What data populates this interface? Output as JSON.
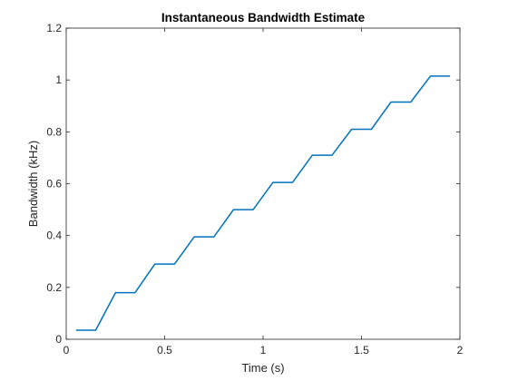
{
  "chart_data": {
    "type": "line",
    "title": "Instantaneous Bandwidth Estimate",
    "xlabel": "Time (s)",
    "ylabel": "Bandwidth (kHz)",
    "xlim": [
      0,
      2
    ],
    "ylim": [
      0,
      1.2
    ],
    "grid": false,
    "x_ticks": [
      0,
      0.5,
      1,
      1.5,
      2
    ],
    "x_tick_labels": [
      "0",
      "0.5",
      "1",
      "1.5",
      "2"
    ],
    "y_ticks": [
      0,
      0.2,
      0.4,
      0.6,
      0.8,
      1,
      1.2
    ],
    "y_tick_labels": [
      "0",
      "0.2",
      "0.4",
      "0.6",
      "0.8",
      "1",
      "1.2"
    ],
    "line_color": "#0072BD",
    "series": [
      {
        "x": [
          0.05,
          0.15,
          0.25,
          0.35,
          0.45,
          0.55,
          0.65,
          0.75,
          0.85,
          0.95,
          1.05,
          1.15,
          1.25,
          1.35,
          1.45,
          1.55,
          1.65,
          1.75,
          1.85,
          1.95
        ],
        "values": [
          0.035,
          0.035,
          0.18,
          0.18,
          0.29,
          0.29,
          0.395,
          0.395,
          0.5,
          0.5,
          0.605,
          0.605,
          0.71,
          0.71,
          0.81,
          0.81,
          0.915,
          0.915,
          1.015,
          1.015
        ]
      }
    ]
  }
}
